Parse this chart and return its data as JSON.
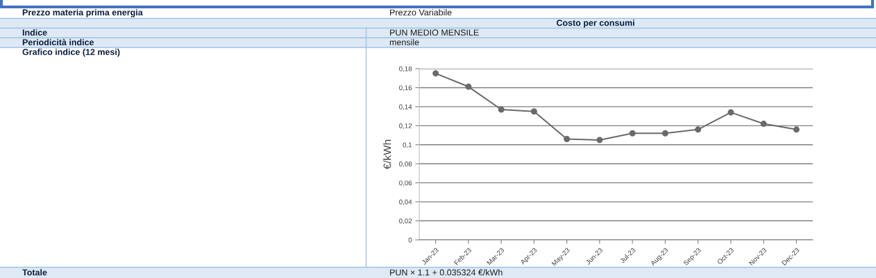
{
  "chart_data": {
    "type": "line",
    "categories": [
      "Jan-23",
      "Feb-23",
      "Mar-23",
      "Apr-23",
      "May-23",
      "Jun-23",
      "Jul-23",
      "Aug-23",
      "Sep-23",
      "Oct-23",
      "Nov-23",
      "Dec-23"
    ],
    "series": [
      {
        "color": "#6a6a6a",
        "values": [
          0.175,
          0.161,
          0.137,
          0.135,
          0.106,
          0.105,
          0.112,
          0.112,
          0.116,
          0.134,
          0.122,
          0.116
        ]
      }
    ],
    "ylabel": "€/kWh",
    "ylim": [
      0,
      0.18
    ],
    "yticks": [
      0,
      {
        "value": 0.02,
        "label": "0,02"
      },
      {
        "value": 0.04,
        "label": "0,04"
      },
      {
        "value": 0.06,
        "label": "0,06"
      },
      {
        "value": 0.08,
        "label": "0,08"
      },
      {
        "value": 0.1,
        "label": "0,1"
      },
      {
        "value": 0.12,
        "label": "0,12"
      },
      {
        "value": 0.14,
        "label": "0,14"
      },
      {
        "value": 0.16,
        "label": "0,16"
      },
      {
        "value": 0.18,
        "label": "0,18"
      }
    ],
    "grid": "y",
    "marker": "circle",
    "line_style": "solid",
    "annotations": [
      "Prezzo materia prima energia",
      "Prezzo Variabile",
      "Costo per consumi",
      "Indice",
      "PUN MEDIO MENSILE",
      "Periodicità indice",
      "mensile",
      "Grafico indice (12 mesi)",
      "Totale",
      "PUN × 1.1 + 0.035324 €/kWh"
    ]
  }
}
